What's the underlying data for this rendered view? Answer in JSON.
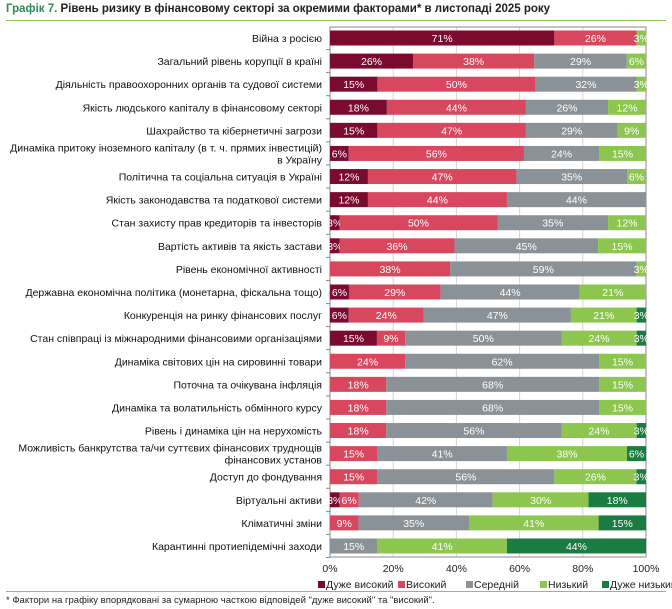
{
  "title": {
    "number": "Графік 7.",
    "text": "Рівень ризику в фінансовому секторі за окремими факторами* в листопаді 2025 року"
  },
  "footnote": "* Фактори на графіку впорядковані за сумарною часткою відповідей \"дуже високий\" та \"високий\".",
  "chart_data": {
    "type": "bar",
    "orientation": "horizontal",
    "stacked": true,
    "xlim": [
      0,
      100
    ],
    "x_ticks": [
      "0%",
      "20%",
      "40%",
      "60%",
      "80%",
      "100%"
    ],
    "grid": true,
    "legend_position": "bottom",
    "categories": [
      "Війна з росією",
      "Загальний рівень корупції в країні",
      "Діяльність правоохоронних органів та судової системи",
      "Якість людського капіталу в фінансовому секторі",
      "Шахрайство та кібернетичні загрози",
      "Динаміка притоку іноземного капіталу (в т. ч. прямих інвестицій)\nв Україну",
      "Політична та соціальна ситуація в Україні",
      "Якість законодавства та податкової системи",
      "Стан захисту прав кредиторів та інвесторів",
      "Вартість активів та якість застави",
      "Рівень економічної активності",
      "Державна економічна політика (монетарна, фіскальна тощо)",
      "Конкуренція на ринку фінансових послуг",
      "Стан співпраці із міжнародними фінансовими організаціями",
      "Динаміка світових цін на сировинні товари",
      "Поточна та очікувана інфляція",
      "Динаміка та волатильність обмінного курсу",
      "Рівень і динаміка цін на нерухомість",
      "Можливість банкрутства та/чи суттєвих фінансових труднощів\nфінансових установ",
      "Доступ до фондування",
      "Віртуальні активи",
      "Кліматичні зміни",
      "Карантинні протиепідемічні заходи"
    ],
    "series": [
      {
        "name": "Дуже високий",
        "color": "#7b0a2f",
        "values": [
          71,
          26,
          15,
          18,
          15,
          6,
          12,
          12,
          3,
          3,
          0,
          6,
          6,
          15,
          0,
          0,
          0,
          0,
          0,
          0,
          3,
          0,
          0
        ]
      },
      {
        "name": "Високий",
        "color": "#d9475f",
        "values": [
          26,
          38,
          50,
          44,
          47,
          56,
          47,
          44,
          50,
          36,
          38,
          29,
          24,
          9,
          24,
          18,
          18,
          18,
          15,
          15,
          6,
          9,
          0
        ]
      },
      {
        "name": "Середній",
        "color": "#8b9297",
        "values": [
          0,
          29,
          32,
          26,
          29,
          24,
          35,
          44,
          35,
          45,
          59,
          44,
          47,
          50,
          62,
          68,
          68,
          56,
          41,
          56,
          42,
          35,
          15
        ]
      },
      {
        "name": "Низький",
        "color": "#8cc64f",
        "values": [
          3,
          6,
          3,
          12,
          9,
          15,
          6,
          0,
          12,
          15,
          3,
          21,
          21,
          24,
          15,
          15,
          15,
          24,
          38,
          26,
          30,
          41,
          41
        ]
      },
      {
        "name": "Дуже низький",
        "color": "#1b7c42",
        "values": [
          0,
          0,
          0,
          0,
          0,
          0,
          0,
          0,
          0,
          0,
          0,
          0,
          3,
          3,
          0,
          0,
          0,
          3,
          6,
          3,
          18,
          15,
          44
        ]
      }
    ]
  }
}
